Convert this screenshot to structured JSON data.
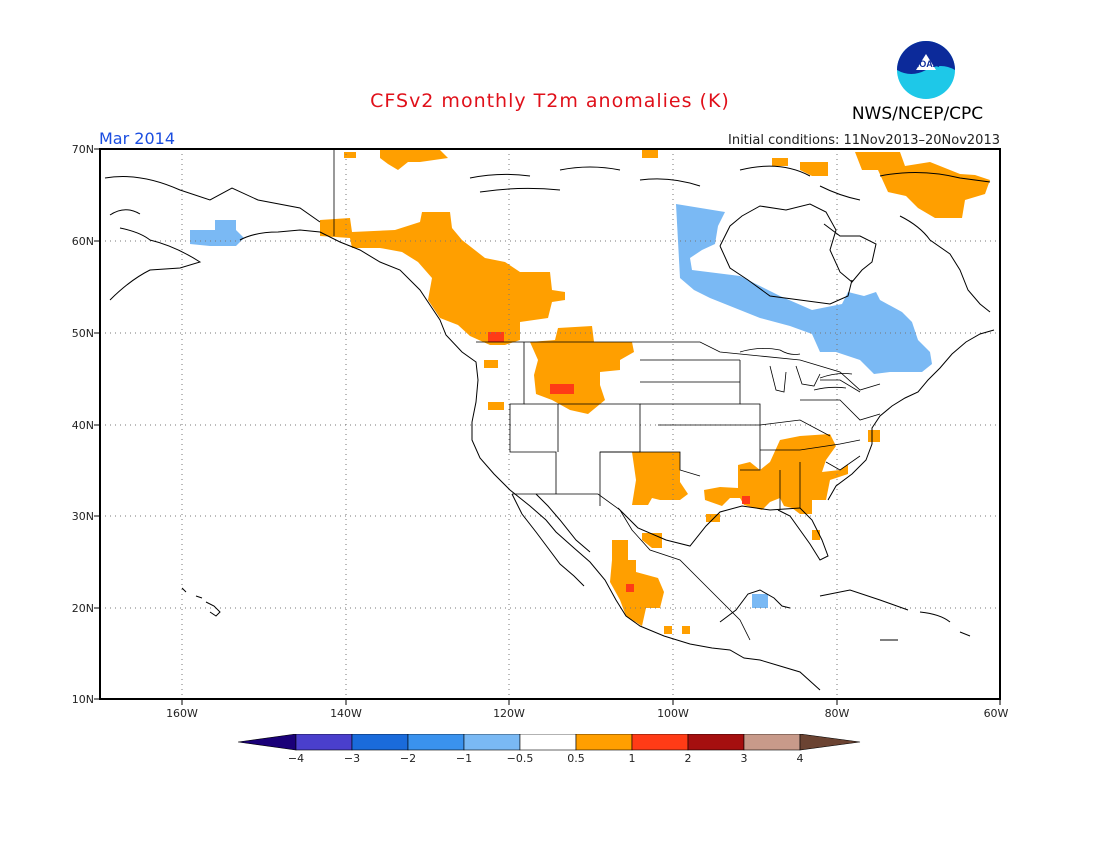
{
  "header": {
    "title": "CFSv2 monthly T2m anomalies (K)",
    "valid_month": "Mar 2014",
    "initial_conditions": "Initial conditions: 11Nov2013–20Nov2013",
    "organization": "NWS/NCEP/CPC",
    "logo_text": "NOAA"
  },
  "map": {
    "lat_labels": [
      "70N",
      "60N",
      "50N",
      "40N",
      "30N",
      "20N",
      "10N"
    ],
    "lon_labels": [
      "160W",
      "140W",
      "120W",
      "100W",
      "80W",
      "60W"
    ],
    "colors": {
      "warm_05_1": "#ff9f00",
      "warm_1_2": "#ff3b16",
      "cool_m1_m05": "#7ab9f4",
      "land_outline": "#000000",
      "grid": "#666666"
    }
  },
  "colorbar": {
    "labels": [
      "−4",
      "−3",
      "−2",
      "−1",
      "−0.5",
      "0.5",
      "1",
      "2",
      "3",
      "4"
    ],
    "colors": [
      "#1a0078",
      "#4a3fcc",
      "#1a6bdb",
      "#3a92ee",
      "#7ab9f4",
      "#ffffff",
      "#ff9f00",
      "#ff3b16",
      "#a50f0f",
      "#c89a8a",
      "#6b4332"
    ]
  }
}
